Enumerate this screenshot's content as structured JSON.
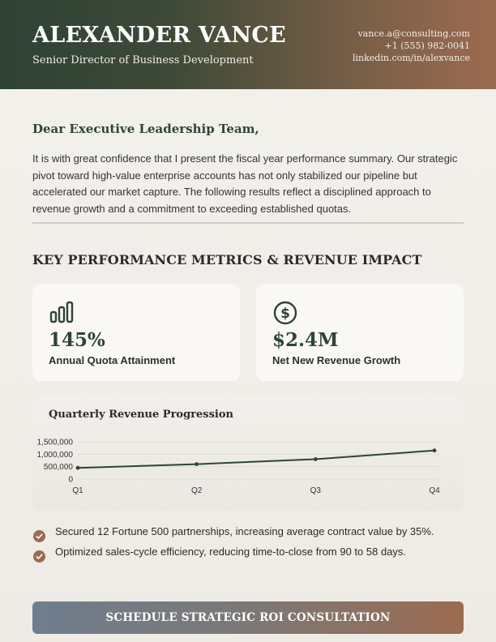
{
  "header": {
    "name": "ALEXANDER VANCE",
    "role": "Senior Director of Business Development",
    "email": "vance.a@consulting.com",
    "phone": "+1 (555) 982-0041",
    "linkedin": "linkedin.com/in/alexvance"
  },
  "letter": {
    "salutation": "Dear Executive Leadership Team,",
    "intro": "It is with great confidence that I present the fiscal year performance summary. Our strategic pivot toward high-value enterprise accounts has not only stabilized our pipeline but accelerated our market capture. The following results reflect a disciplined approach to revenue growth and a commitment to exceeding established quotas."
  },
  "metrics": {
    "title": "KEY PERFORMANCE METRICS & REVENUE IMPACT",
    "cards": [
      {
        "icon": "bar-chart-icon",
        "value": "145%",
        "label": "Annual Quota Attainment"
      },
      {
        "icon": "dollar-circle-icon",
        "value": "$2.4M",
        "label": "Net New Revenue Growth"
      }
    ]
  },
  "chart_data": {
    "type": "line",
    "title": "Quarterly Revenue Progression",
    "categories": [
      "Q1",
      "Q2",
      "Q3",
      "Q4"
    ],
    "values": [
      450000,
      600000,
      800000,
      1150000
    ],
    "yticks": [
      0,
      500000,
      1000000,
      1500000
    ],
    "ytick_labels": [
      "0",
      "500,000",
      "1,000,000",
      "1,500,000"
    ],
    "ylim": [
      0,
      1500000
    ],
    "grid": true,
    "line_color": "#2f4436"
  },
  "highlights": [
    "Secured 12 Fortune 500 partnerships, increasing average contract value by 35%.",
    "Optimized sales-cycle efficiency, reducing time-to-close from 90 to 58 days."
  ],
  "cta": {
    "label": "SCHEDULE STRATEGIC ROI CONSULTATION"
  },
  "colors": {
    "primary": "#2f4436",
    "accent": "#9b6b50"
  }
}
